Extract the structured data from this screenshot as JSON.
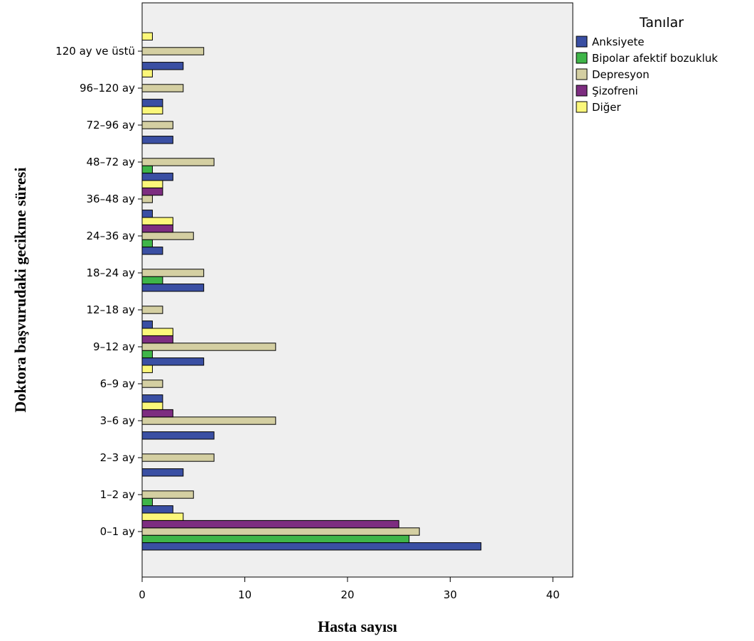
{
  "chart_data": {
    "type": "bar",
    "orientation": "horizontal",
    "xlabel": "Hasta sayısı",
    "ylabel": "Doktora başvurudaki gecikme süresi",
    "xlim": [
      0,
      42
    ],
    "xticks": [
      0,
      10,
      20,
      30,
      40
    ],
    "grid": false,
    "legend_title": "Tanılar",
    "legend_position": "right",
    "categories": [
      "0–1 ay",
      "1–2 ay",
      "2–3 ay",
      "3–6 ay",
      "6–9 ay",
      "9–12 ay",
      "12–18 ay",
      "18–24 ay",
      "24–36 ay",
      "36–48 ay",
      "48–72 ay",
      "72–96 ay",
      "96–120 ay",
      "120 ay ve üstü"
    ],
    "series": [
      {
        "name": "Anksiyete",
        "color": "#3a4fa3",
        "values": [
          33,
          3,
          4,
          7,
          2,
          6,
          1,
          6,
          2,
          1,
          3,
          3,
          2,
          4
        ]
      },
      {
        "name": "Bipolar afektif bozukluk",
        "color": "#3fb549",
        "values": [
          26,
          1,
          0,
          0,
          0,
          1,
          0,
          2,
          1,
          0,
          1,
          0,
          0,
          0
        ]
      },
      {
        "name": "Depresyon",
        "color": "#d4cfa2",
        "values": [
          27,
          5,
          7,
          13,
          2,
          13,
          2,
          6,
          5,
          1,
          7,
          3,
          4,
          6
        ]
      },
      {
        "name": "Şizofreni",
        "color": "#7d2d80",
        "values": [
          25,
          0,
          0,
          3,
          0,
          3,
          0,
          0,
          3,
          2,
          0,
          0,
          0,
          0
        ]
      },
      {
        "name": "Diğer",
        "color": "#fbf77a",
        "values": [
          4,
          0,
          0,
          2,
          1,
          3,
          0,
          0,
          3,
          2,
          0,
          2,
          1,
          1
        ]
      }
    ]
  }
}
